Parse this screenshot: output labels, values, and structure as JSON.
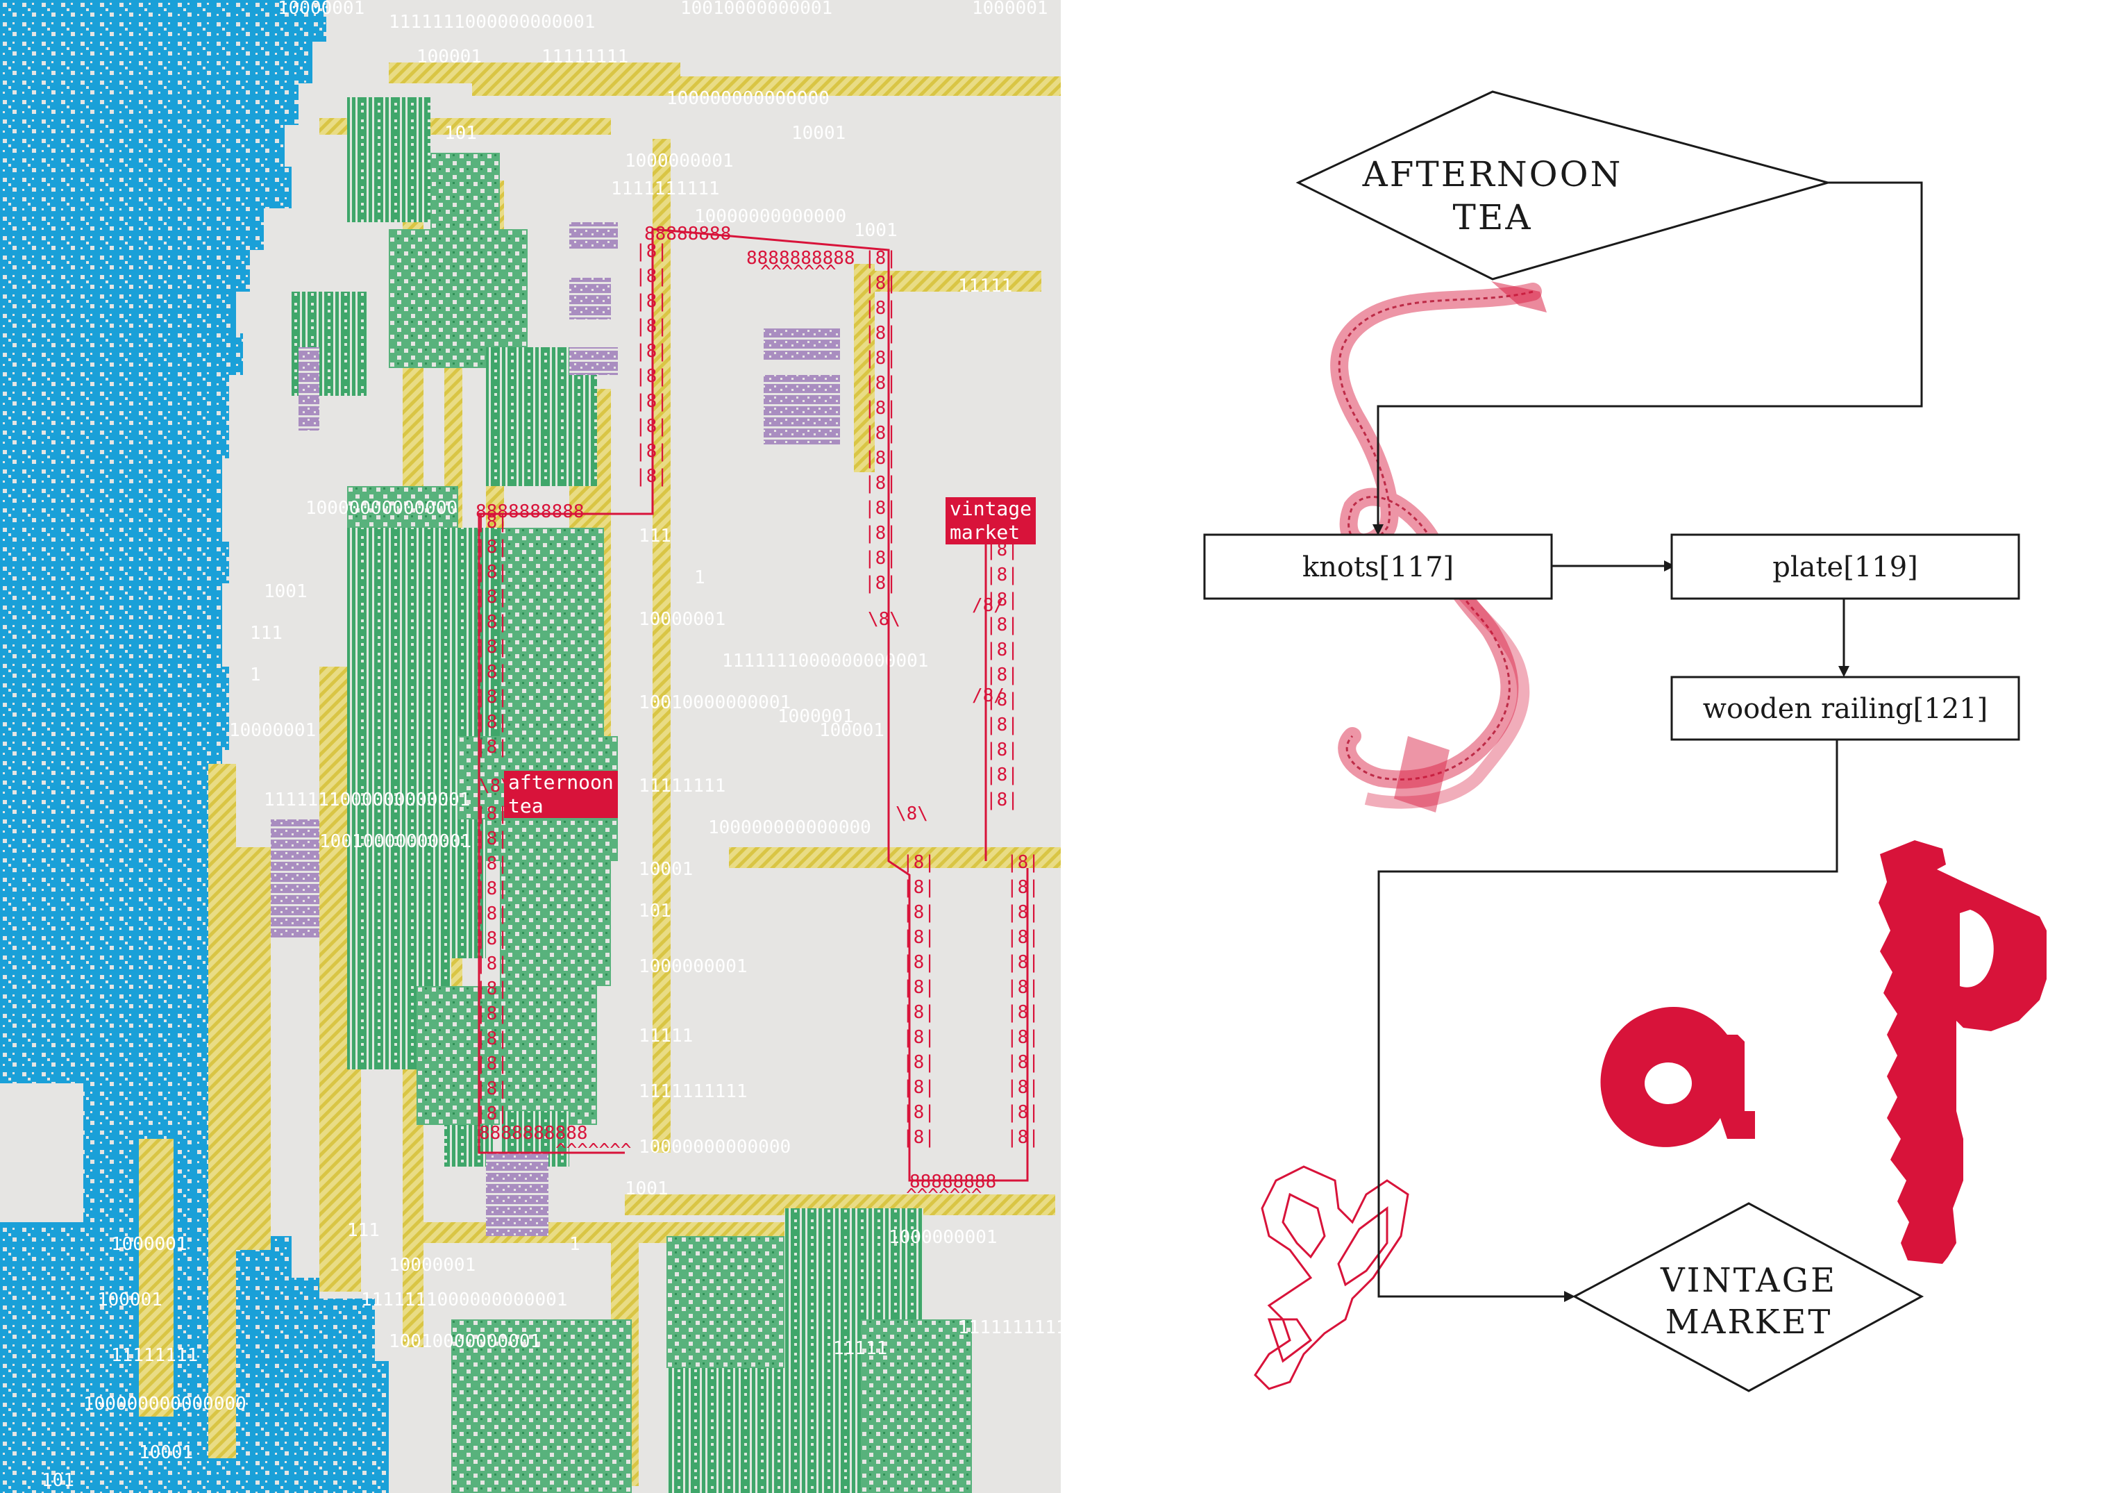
{
  "map": {
    "labels": {
      "afternoon_tea": "afternoon\ntea",
      "vintage_market": "vintage\nmarket"
    },
    "binary_strings": [
      "10000001",
      "1111111000000000001",
      "10010000000001",
      "1000001",
      "100001",
      "11111111",
      "100000000000000",
      "10001",
      "101",
      "1000000001",
      "11111",
      "1111111111",
      "10000000000000",
      "1001",
      "111",
      "1"
    ],
    "ascii_glyphs": [
      "|8|",
      "88888888",
      "8888888888",
      "\\8\\",
      "/8/",
      "^^^^^^^"
    ],
    "colors": {
      "blue": "#1aa0d8",
      "green": "#3fa66a",
      "yellow": "#e3cf55",
      "purple": "#a98dc0",
      "red": "#d8133a",
      "bg": "#e6e5e3",
      "text": "#ffffff"
    }
  },
  "flowchart": {
    "start": {
      "line1": "AFTERNOON",
      "line2": "TEA"
    },
    "steps": [
      "knots[117]",
      "plate[119]",
      "wooden railing[121]"
    ],
    "end": {
      "line1": "VINTAGE",
      "line2": "MARKET"
    }
  },
  "decorations": {
    "icons": [
      "twisted-ribbon-illustration",
      "red-letter-a-glyph",
      "red-letter-p-glyph",
      "outlined-letters-sketch"
    ],
    "accent": "#d8133a"
  }
}
